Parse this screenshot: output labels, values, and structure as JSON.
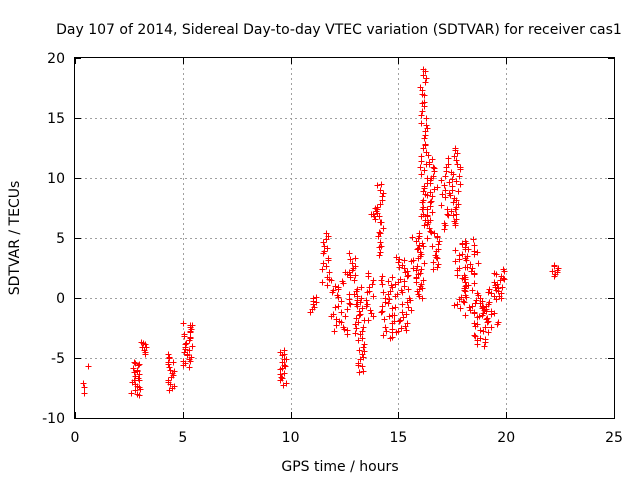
{
  "chart_data": {
    "type": "scatter",
    "title": "Day 107 of 2014, Sidereal Day-to-day VTEC variation (SDTVAR) for receiver cas1",
    "xlabel": "GPS time / hours",
    "ylabel": "SDTVAR / TECUs",
    "xlim": [
      0,
      25
    ],
    "ylim": [
      -10,
      20
    ],
    "grid": true,
    "marker": "+",
    "color": "#ff0000",
    "x_ticks": [
      "0",
      "5",
      "10",
      "15",
      "20",
      "25"
    ],
    "y_ticks": [
      "-10",
      "-5",
      "0",
      "5",
      "10",
      "15",
      "20"
    ],
    "clusters": [
      {
        "x0": 0.38,
        "x1": 0.45,
        "ymin": -8.0,
        "ymax": -7.0,
        "n": 3
      },
      {
        "x0": 0.55,
        "x1": 0.6,
        "ymin": -5.7,
        "ymax": -5.5,
        "n": 1
      },
      {
        "x0": 2.6,
        "x1": 3.0,
        "ymin": -8.2,
        "ymax": -5.2,
        "n": 22
      },
      {
        "x0": 3.05,
        "x1": 3.3,
        "ymin": -4.7,
        "ymax": -3.5,
        "n": 8
      },
      {
        "x0": 4.3,
        "x1": 4.6,
        "ymin": -7.8,
        "ymax": -4.6,
        "n": 18
      },
      {
        "x0": 5.0,
        "x1": 5.5,
        "ymin": -5.8,
        "ymax": -2.0,
        "n": 28
      },
      {
        "x0": 9.5,
        "x1": 9.8,
        "ymin": -7.3,
        "ymax": -4.2,
        "n": 18
      },
      {
        "x0": 10.9,
        "x1": 11.2,
        "ymin": -1.2,
        "ymax": 0.2,
        "n": 8
      },
      {
        "x0": 11.4,
        "x1": 11.8,
        "ymin": 1.0,
        "ymax": 5.5,
        "n": 18
      },
      {
        "x0": 11.8,
        "x1": 12.8,
        "ymin": -3.0,
        "ymax": 2.2,
        "n": 35
      },
      {
        "x0": 12.6,
        "x1": 13.0,
        "ymin": 1.5,
        "ymax": 3.8,
        "n": 10
      },
      {
        "x0": 12.9,
        "x1": 13.4,
        "ymin": -3.5,
        "ymax": 1.0,
        "n": 25
      },
      {
        "x0": 13.1,
        "x1": 13.4,
        "ymin": -6.3,
        "ymax": -3.8,
        "n": 12
      },
      {
        "x0": 13.5,
        "x1": 13.9,
        "ymin": -2.0,
        "ymax": 2.2,
        "n": 15
      },
      {
        "x0": 13.7,
        "x1": 14.0,
        "ymin": 6.5,
        "ymax": 7.5,
        "n": 6
      },
      {
        "x0": 14.0,
        "x1": 14.4,
        "ymin": 3.5,
        "ymax": 9.7,
        "n": 22
      },
      {
        "x0": 14.2,
        "x1": 14.8,
        "ymin": -3.5,
        "ymax": 2.0,
        "n": 30
      },
      {
        "x0": 14.8,
        "x1": 15.6,
        "ymin": -3.0,
        "ymax": 3.5,
        "n": 40
      },
      {
        "x0": 15.6,
        "x1": 16.2,
        "ymin": 0.0,
        "ymax": 5.5,
        "n": 35
      },
      {
        "x0": 16.0,
        "x1": 16.35,
        "ymin": 6.0,
        "ymax": 19.3,
        "n": 45
      },
      {
        "x0": 16.3,
        "x1": 16.8,
        "ymin": 5.0,
        "ymax": 12.0,
        "n": 30
      },
      {
        "x0": 16.5,
        "x1": 16.9,
        "ymin": 2.3,
        "ymax": 5.5,
        "n": 15
      },
      {
        "x0": 16.9,
        "x1": 17.3,
        "ymin": 5.5,
        "ymax": 11.0,
        "n": 15
      },
      {
        "x0": 17.3,
        "x1": 17.9,
        "ymin": 6.0,
        "ymax": 12.5,
        "n": 35
      },
      {
        "x0": 17.6,
        "x1": 18.1,
        "ymin": -1.0,
        "ymax": 5.0,
        "n": 25
      },
      {
        "x0": 18.0,
        "x1": 18.7,
        "ymin": -1.5,
        "ymax": 5.0,
        "n": 40
      },
      {
        "x0": 18.5,
        "x1": 19.2,
        "ymin": -4.0,
        "ymax": 0.0,
        "n": 30
      },
      {
        "x0": 19.0,
        "x1": 19.6,
        "ymin": -2.5,
        "ymax": 1.0,
        "n": 18
      },
      {
        "x0": 19.4,
        "x1": 20.0,
        "ymin": 0.0,
        "ymax": 2.5,
        "n": 18
      },
      {
        "x0": 22.1,
        "x1": 22.4,
        "ymin": 1.8,
        "ymax": 2.9,
        "n": 8
      }
    ]
  }
}
